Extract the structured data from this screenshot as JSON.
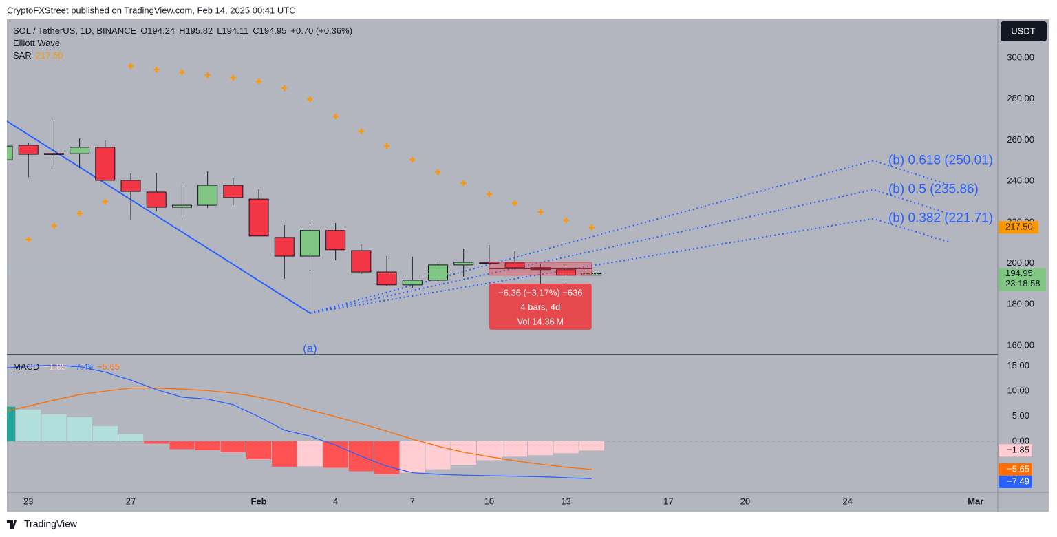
{
  "published": "CryptoFXStreet published on TradingView.com, Feb 14, 2025 00:41 UTC",
  "brand": "TradingView",
  "chart_data": [
    {
      "type": "candlestick",
      "title": "SOL / TetherUS, 1D, BINANCE",
      "quote": [
        "O194.24",
        "H195.82",
        "L194.11",
        "C194.95",
        "+0.70 (+0.36%)"
      ],
      "studies": [
        "Elliott Wave"
      ],
      "currency": "USDT",
      "x": [
        "2025-01-22",
        "2025-01-23",
        "2025-01-24",
        "2025-01-25",
        "2025-01-26",
        "2025-01-27",
        "2025-01-28",
        "2025-01-29",
        "2025-01-30",
        "2025-01-31",
        "2025-02-01",
        "2025-02-02",
        "2025-02-03",
        "2025-02-04",
        "2025-02-05",
        "2025-02-06",
        "2025-02-07",
        "2025-02-08",
        "2025-02-09",
        "2025-02-10",
        "2025-02-11",
        "2025-02-12",
        "2025-02-13",
        "2025-02-14"
      ],
      "open": [
        250.4,
        257.5,
        253.5,
        253.4,
        256.5,
        240.4,
        234.7,
        227.3,
        228.3,
        238.0,
        231.3,
        212.6,
        203.5,
        216.0,
        206.2,
        195.8,
        189.5,
        191.8,
        199.2,
        200.5,
        200.2,
        197.9,
        196.9,
        194.24
      ],
      "high": [
        259.0,
        258.5,
        270.2,
        260.8,
        259.8,
        243.7,
        244.0,
        238.4,
        244.7,
        241.7,
        236.0,
        218.6,
        218.6,
        219.6,
        209.2,
        203.6,
        203.2,
        200.5,
        207.2,
        208.9,
        205.9,
        199.5,
        198.2,
        195.82
      ],
      "low": [
        249.0,
        242.0,
        247.0,
        246.4,
        240.4,
        221.0,
        225.3,
        223.0,
        227.0,
        228.3,
        213.3,
        192.5,
        175.8,
        201.5,
        194.8,
        188.8,
        188.1,
        189.8,
        193.5,
        196.9,
        196.9,
        188.8,
        188.8,
        194.11
      ],
      "close": [
        257.1,
        253.1,
        253.4,
        256.5,
        240.4,
        235.0,
        227.3,
        228.3,
        238.0,
        232.0,
        213.3,
        203.5,
        216.0,
        206.6,
        195.8,
        189.5,
        191.8,
        199.2,
        200.5,
        200.3,
        197.9,
        196.9,
        194.2,
        194.95
      ],
      "up_color": "#81c784",
      "down_color": "#f23645",
      "last_price_label": "194.95",
      "countdown": "23:18:58",
      "sar": {
        "name": "SAR",
        "value_label": "217.50",
        "color": "#ff9800",
        "values": [
          null,
          211.6,
          218.3,
          224.3,
          230.0,
          296.0,
          294.3,
          293.0,
          291.6,
          290.3,
          288.6,
          285.3,
          279.9,
          271.5,
          264.2,
          257.1,
          250.4,
          244.4,
          239.0,
          233.7,
          229.3,
          225.0,
          221.0,
          217.5
        ]
      },
      "elliott_wave": {
        "label": "(a)",
        "color": "#2962ff",
        "start": {
          "x": "2025-01-22",
          "y": 270.5
        },
        "end": {
          "x": "2025-02-03",
          "y": 175.8
        }
      },
      "fib_levels": {
        "x": "2025-02-25",
        "end_x": "2025-02-28",
        "color": "#2962ff",
        "levels": [
          {
            "label": "(b) 0.618 (250.01)",
            "value": 250.01,
            "end_value": 238.0
          },
          {
            "label": "(b) 0.5 (235.86)",
            "value": 235.86,
            "end_value": 224.0
          },
          {
            "label": "(b) 0.382 (221.71)",
            "value": 221.71,
            "end_value": 210.2
          }
        ]
      },
      "measure": {
        "start": "2025-02-10",
        "end": "2025-02-14",
        "top": 200.5,
        "bottom": 194.2,
        "lines": [
          "−6.36 (−3.17%) −636",
          "4 bars, 4d",
          "Vol 14.36 M"
        ]
      },
      "xlim": [
        "2025-01-22",
        "2025-03-02"
      ],
      "xticks": [
        {
          "value": "2025-01-23",
          "label": "23"
        },
        {
          "value": "2025-01-27",
          "label": "27"
        },
        {
          "value": "2025-02-01",
          "label": "Feb"
        },
        {
          "value": "2025-02-04",
          "label": "4"
        },
        {
          "value": "2025-02-07",
          "label": "7"
        },
        {
          "value": "2025-02-10",
          "label": "10"
        },
        {
          "value": "2025-02-13",
          "label": "13"
        },
        {
          "value": "2025-02-17",
          "label": "17"
        },
        {
          "value": "2025-02-20",
          "label": "20"
        },
        {
          "value": "2025-02-24",
          "label": "24"
        },
        {
          "value": "2025-03-01",
          "label": "Mar"
        }
      ],
      "ylim": [
        155.6,
        318.8
      ],
      "yticks": [
        {
          "value": 160,
          "label": "160.00"
        },
        {
          "value": 180,
          "label": "180.00"
        },
        {
          "value": 200,
          "label": "200.00"
        },
        {
          "value": 220,
          "label": "220.00"
        },
        {
          "value": 240,
          "label": "240.00"
        },
        {
          "value": 260,
          "label": "260.00"
        },
        {
          "value": 280,
          "label": "280.00"
        },
        {
          "value": 300,
          "label": "300.00"
        }
      ]
    },
    {
      "type": "macd",
      "name": "MACD",
      "x": [
        "2025-01-22",
        "2025-01-23",
        "2025-01-24",
        "2025-01-25",
        "2025-01-26",
        "2025-01-27",
        "2025-01-28",
        "2025-01-29",
        "2025-01-30",
        "2025-01-31",
        "2025-02-01",
        "2025-02-02",
        "2025-02-03",
        "2025-02-04",
        "2025-02-05",
        "2025-02-06",
        "2025-02-07",
        "2025-02-08",
        "2025-02-09",
        "2025-02-10",
        "2025-02-11",
        "2025-02-12",
        "2025-02-13",
        "2025-02-14"
      ],
      "xlim": [
        "2025-01-22",
        "2025-03-02"
      ],
      "histogram": {
        "value_label": "−1.85",
        "colors": {
          "rising_above": "#26a69a",
          "falling_above": "#b2dfdb",
          "rising_below": "#ffcdd2",
          "falling_below": "#ff5252"
        },
        "values": [
          6.9,
          6.3,
          5.4,
          4.8,
          3.0,
          1.4,
          -0.5,
          -1.6,
          -1.8,
          -2.2,
          -3.6,
          -5.1,
          -5.0,
          -5.3,
          -6.0,
          -6.6,
          -6.3,
          -5.6,
          -4.7,
          -3.8,
          -3.1,
          -2.8,
          -2.4,
          -1.85
        ]
      },
      "macd": {
        "value_label": "−7.49",
        "color": "#2962ff",
        "values": [
          14.6,
          15.0,
          15.2,
          14.9,
          13.8,
          12.2,
          10.3,
          8.8,
          8.4,
          7.3,
          4.9,
          2.2,
          1.0,
          -0.8,
          -3.0,
          -5.0,
          -6.3,
          -6.6,
          -6.8,
          -6.9,
          -7.0,
          -7.1,
          -7.3,
          -7.49
        ]
      },
      "signal": {
        "value_label": "−5.65",
        "color": "#ff6d00",
        "values": [
          5.9,
          7.0,
          8.2,
          9.3,
          10.0,
          10.6,
          10.6,
          10.4,
          10.1,
          9.6,
          8.8,
          7.6,
          6.2,
          4.9,
          3.5,
          2.0,
          0.4,
          -1.0,
          -2.2,
          -3.1,
          -3.9,
          -4.6,
          -5.2,
          -5.65
        ]
      },
      "ylim": [
        -10.2,
        17.3
      ],
      "yticks": [
        {
          "value": 0,
          "label": "0.00"
        },
        {
          "value": 5,
          "label": "5.00"
        },
        {
          "value": 10,
          "label": "10.00"
        },
        {
          "value": 15,
          "label": "15.00"
        }
      ]
    }
  ]
}
